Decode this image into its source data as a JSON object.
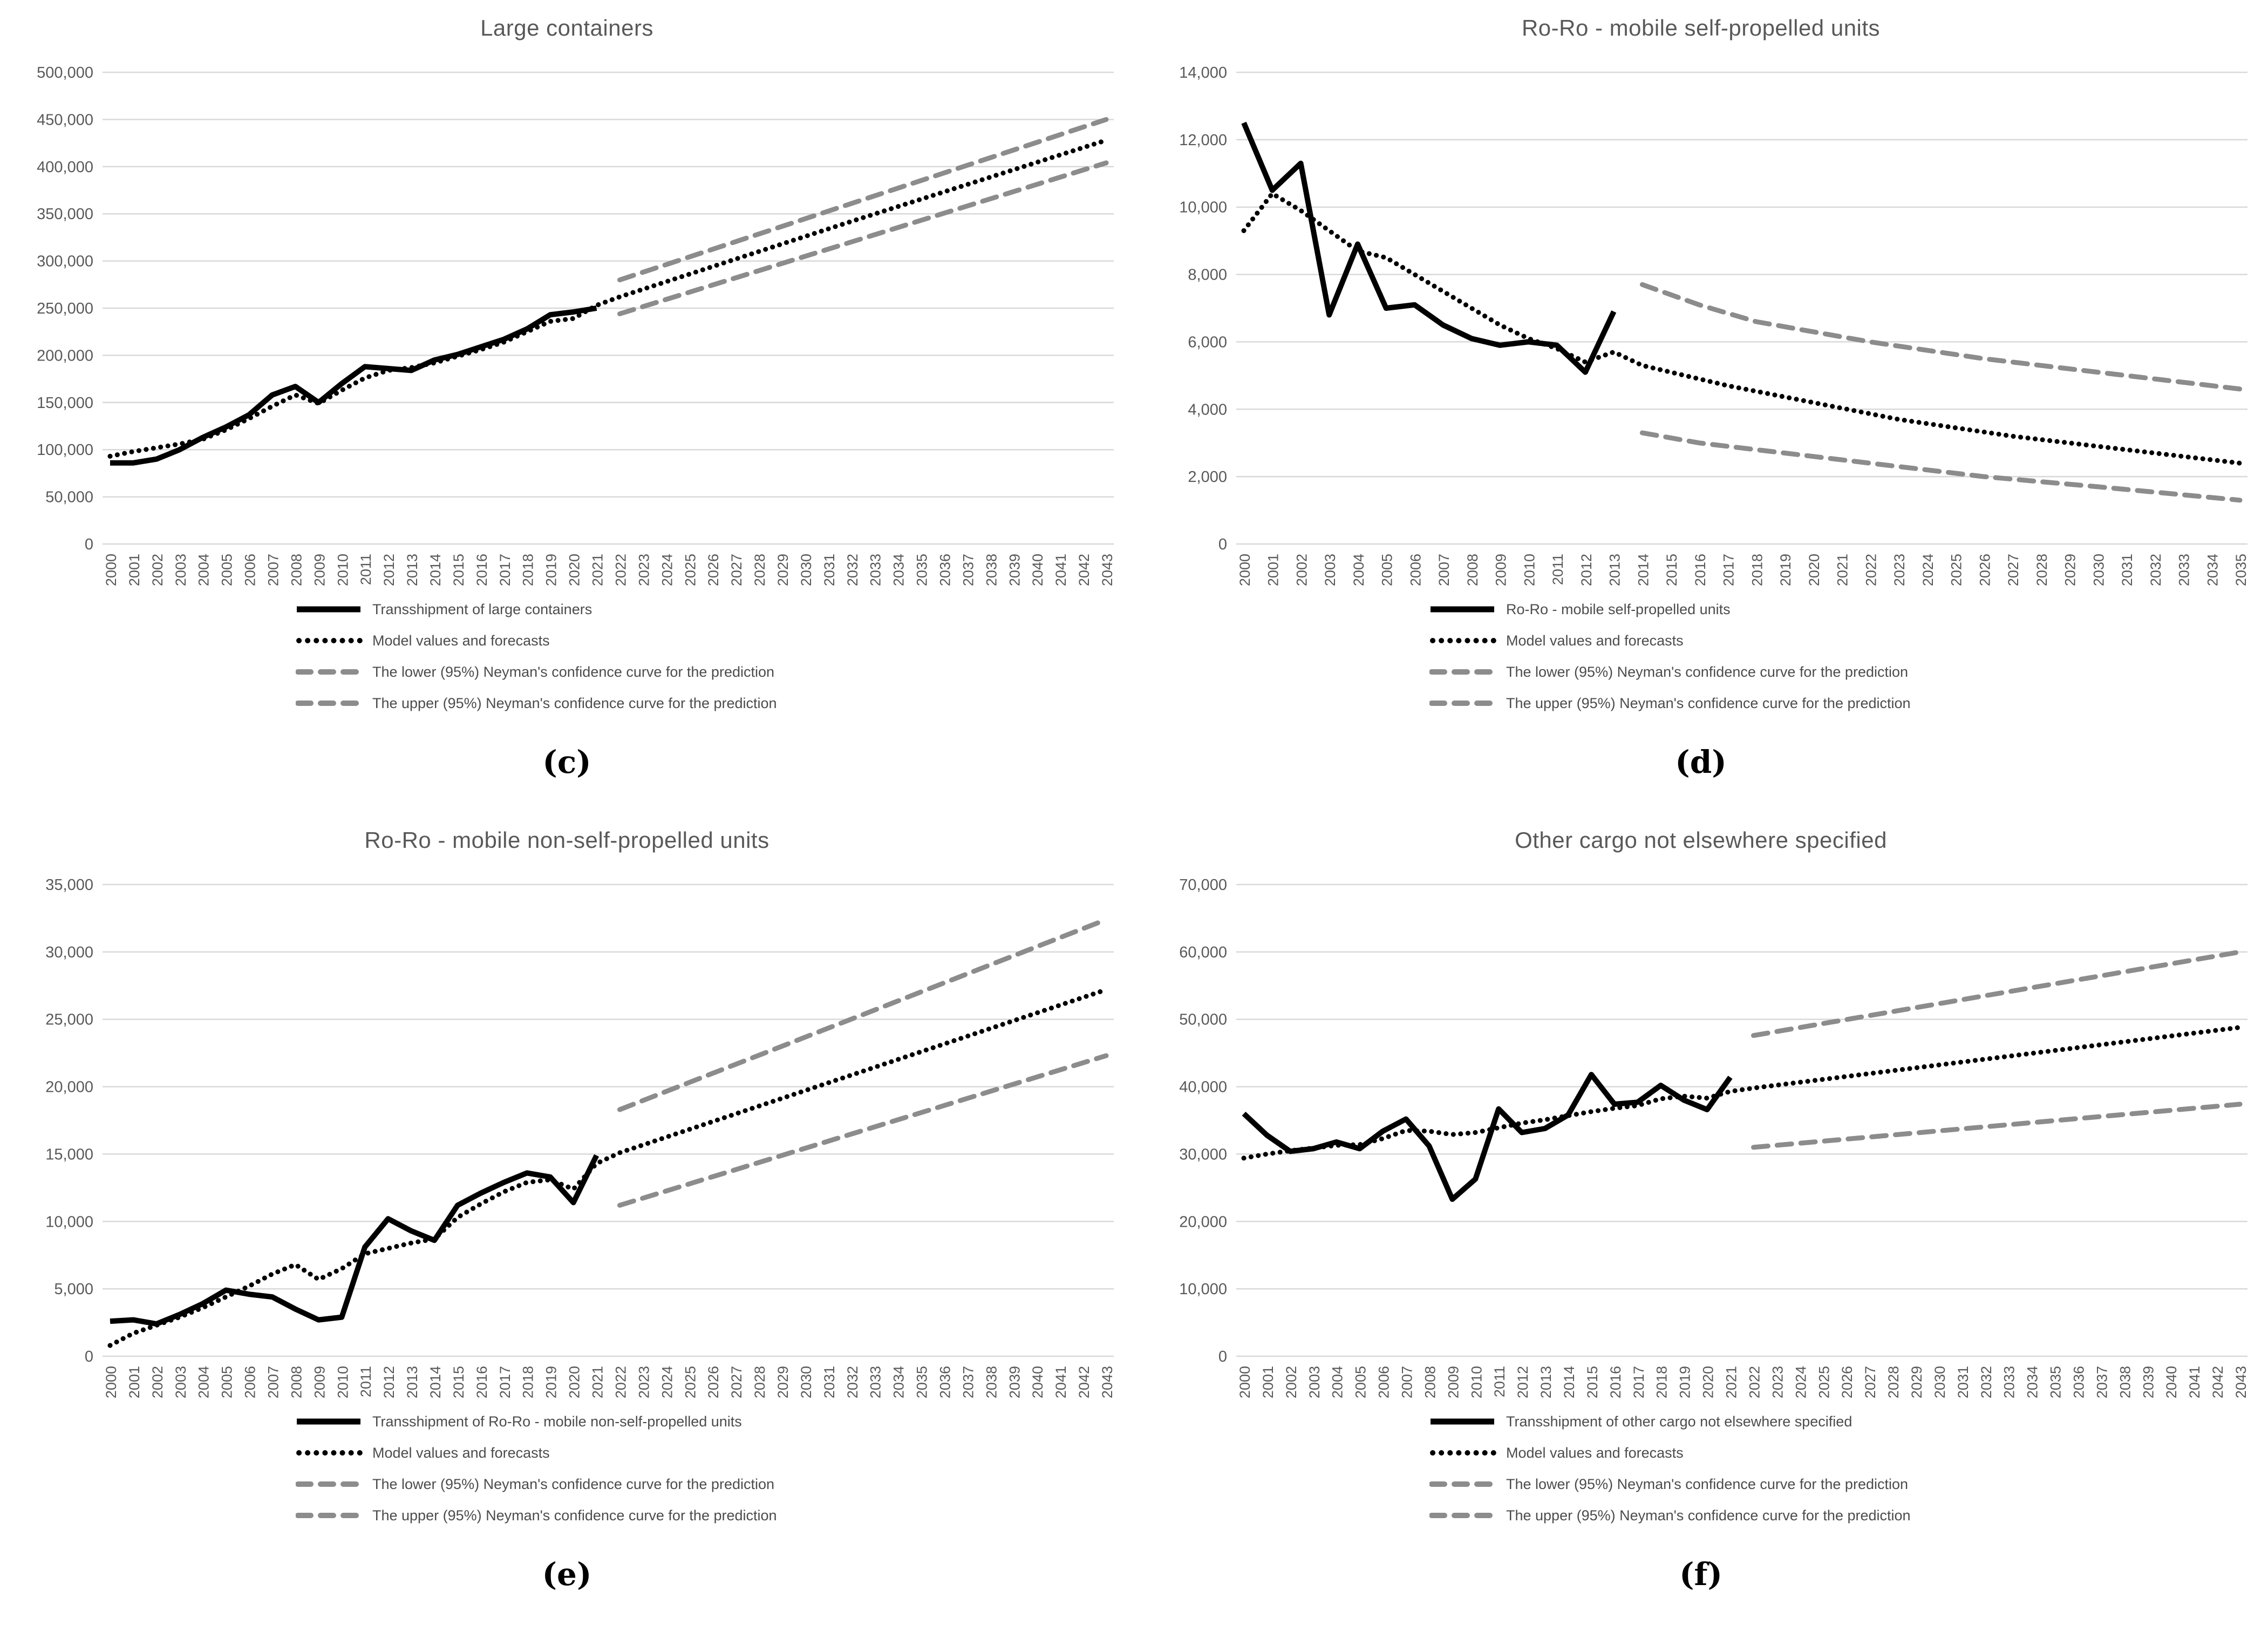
{
  "figure": {
    "background": "#ffffff",
    "colors": {
      "actual_line": "#000000",
      "model_line": "#000000",
      "confidence_line": "#8c8c8c",
      "gridline": "#d9d9d9",
      "axis_text": "#595959",
      "legend_text": "#4c4c4c",
      "title_text": "#595959"
    }
  },
  "chart_data": [
    {
      "type": "line",
      "panel_label": "(c)",
      "title": "Large containers",
      "xlabel": "",
      "ylabel": "",
      "x_start": 2000,
      "x_end": 2043,
      "ylim": [
        0,
        500000
      ],
      "ystep": 50000,
      "grid": true,
      "legend_position": "bottom",
      "series": [
        {
          "name": "Transshipment of large containers",
          "role": "actual",
          "points": [
            [
              2000,
              86000
            ],
            [
              2001,
              86000
            ],
            [
              2002,
              90000
            ],
            [
              2003,
              100000
            ],
            [
              2004,
              113000
            ],
            [
              2005,
              124000
            ],
            [
              2006,
              137000
            ],
            [
              2007,
              158000
            ],
            [
              2008,
              167000
            ],
            [
              2009,
              150000
            ],
            [
              2010,
              170000
            ],
            [
              2011,
              188000
            ],
            [
              2012,
              186000
            ],
            [
              2013,
              184000
            ],
            [
              2014,
              195000
            ],
            [
              2015,
              201000
            ],
            [
              2016,
              209000
            ],
            [
              2017,
              217000
            ],
            [
              2018,
              228000
            ],
            [
              2019,
              243000
            ],
            [
              2020,
              246000
            ],
            [
              2021,
              250000
            ]
          ]
        },
        {
          "name": "Model values and forecasts",
          "role": "model",
          "points": [
            [
              2000,
              93000
            ],
            [
              2001,
              98000
            ],
            [
              2002,
              102000
            ],
            [
              2003,
              106000
            ],
            [
              2004,
              111000
            ],
            [
              2005,
              121000
            ],
            [
              2006,
              133000
            ],
            [
              2007,
              146000
            ],
            [
              2008,
              158000
            ],
            [
              2009,
              149000
            ],
            [
              2010,
              163000
            ],
            [
              2011,
              176000
            ],
            [
              2012,
              184000
            ],
            [
              2013,
              187000
            ],
            [
              2014,
              192000
            ],
            [
              2015,
              199000
            ],
            [
              2016,
              206000
            ],
            [
              2017,
              214000
            ],
            [
              2018,
              225000
            ],
            [
              2019,
              236000
            ],
            [
              2020,
              239000
            ],
            [
              2021,
              253000
            ],
            [
              2022,
              262000
            ],
            [
              2032,
              342000
            ],
            [
              2043,
              428000
            ]
          ]
        },
        {
          "name": "The lower (95%) Neyman's confidence curve for the prediction",
          "role": "lower",
          "points": [
            [
              2022,
              244000
            ],
            [
              2043,
              404000
            ]
          ]
        },
        {
          "name": "The upper (95%) Neyman's confidence curve for the prediction",
          "role": "upper",
          "points": [
            [
              2022,
              280000
            ],
            [
              2043,
              450000
            ]
          ]
        }
      ]
    },
    {
      "type": "line",
      "panel_label": "(d)",
      "title": "Ro-Ro - mobile self-propelled units",
      "xlabel": "",
      "ylabel": "",
      "x_start": 2000,
      "x_end": 2035,
      "ylim": [
        0,
        14000
      ],
      "ystep": 2000,
      "grid": true,
      "legend_position": "bottom",
      "series": [
        {
          "name": "Ro-Ro - mobile self-propelled units",
          "role": "actual",
          "points": [
            [
              2000,
              12500
            ],
            [
              2001,
              10500
            ],
            [
              2002,
              11300
            ],
            [
              2003,
              6800
            ],
            [
              2004,
              8900
            ],
            [
              2005,
              7000
            ],
            [
              2006,
              7100
            ],
            [
              2007,
              6500
            ],
            [
              2008,
              6100
            ],
            [
              2009,
              5900
            ],
            [
              2010,
              6000
            ],
            [
              2011,
              5900
            ],
            [
              2012,
              5100
            ],
            [
              2013,
              6900
            ]
          ]
        },
        {
          "name": "Model values and forecasts",
          "role": "model",
          "points": [
            [
              2000,
              9300
            ],
            [
              2001,
              10400
            ],
            [
              2002,
              9900
            ],
            [
              2003,
              9300
            ],
            [
              2004,
              8700
            ],
            [
              2005,
              8500
            ],
            [
              2006,
              8000
            ],
            [
              2007,
              7500
            ],
            [
              2008,
              7000
            ],
            [
              2009,
              6500
            ],
            [
              2010,
              6100
            ],
            [
              2011,
              5800
            ],
            [
              2012,
              5400
            ],
            [
              2013,
              5700
            ],
            [
              2014,
              5300
            ],
            [
              2017,
              4700
            ],
            [
              2020,
              4200
            ],
            [
              2023,
              3700
            ],
            [
              2027,
              3200
            ],
            [
              2031,
              2800
            ],
            [
              2035,
              2400
            ]
          ]
        },
        {
          "name": "The lower (95%) Neyman's confidence curve for the prediction",
          "role": "lower",
          "points": [
            [
              2014,
              3300
            ],
            [
              2016,
              3000
            ],
            [
              2018,
              2800
            ],
            [
              2020,
              2600
            ],
            [
              2022,
              2400
            ],
            [
              2026,
              2000
            ],
            [
              2030,
              1700
            ],
            [
              2035,
              1300
            ]
          ]
        },
        {
          "name": "The upper (95%) Neyman's confidence curve for the prediction",
          "role": "upper",
          "points": [
            [
              2014,
              7700
            ],
            [
              2016,
              7100
            ],
            [
              2018,
              6600
            ],
            [
              2020,
              6300
            ],
            [
              2022,
              6000
            ],
            [
              2026,
              5500
            ],
            [
              2030,
              5100
            ],
            [
              2035,
              4600
            ]
          ]
        }
      ]
    },
    {
      "type": "line",
      "panel_label": "(e)",
      "title": "Ro-Ro - mobile non-self-propelled units",
      "xlabel": "",
      "ylabel": "",
      "x_start": 2000,
      "x_end": 2043,
      "ylim": [
        0,
        35000
      ],
      "ystep": 5000,
      "grid": true,
      "legend_position": "bottom",
      "series": [
        {
          "name": "Transshipment of Ro-Ro - mobile non-self-propelled units",
          "role": "actual",
          "points": [
            [
              2000,
              2600
            ],
            [
              2001,
              2700
            ],
            [
              2002,
              2400
            ],
            [
              2003,
              3100
            ],
            [
              2004,
              3900
            ],
            [
              2005,
              4900
            ],
            [
              2006,
              4600
            ],
            [
              2007,
              4400
            ],
            [
              2008,
              3500
            ],
            [
              2009,
              2700
            ],
            [
              2010,
              2900
            ],
            [
              2011,
              8100
            ],
            [
              2012,
              10200
            ],
            [
              2013,
              9300
            ],
            [
              2014,
              8600
            ],
            [
              2015,
              11200
            ],
            [
              2016,
              12100
            ],
            [
              2017,
              12900
            ],
            [
              2018,
              13600
            ],
            [
              2019,
              13300
            ],
            [
              2020,
              11400
            ],
            [
              2021,
              14900
            ]
          ]
        },
        {
          "name": "Model values and forecasts",
          "role": "model",
          "points": [
            [
              2000,
              800
            ],
            [
              2001,
              1700
            ],
            [
              2002,
              2300
            ],
            [
              2003,
              2900
            ],
            [
              2004,
              3600
            ],
            [
              2005,
              4400
            ],
            [
              2006,
              5200
            ],
            [
              2007,
              6100
            ],
            [
              2008,
              6800
            ],
            [
              2009,
              5700
            ],
            [
              2010,
              6500
            ],
            [
              2011,
              7600
            ],
            [
              2012,
              8000
            ],
            [
              2013,
              8400
            ],
            [
              2014,
              8700
            ],
            [
              2015,
              10300
            ],
            [
              2016,
              11300
            ],
            [
              2017,
              12200
            ],
            [
              2018,
              12900
            ],
            [
              2019,
              13100
            ],
            [
              2020,
              12400
            ],
            [
              2021,
              14300
            ],
            [
              2022,
              15100
            ],
            [
              2043,
              27200
            ]
          ]
        },
        {
          "name": "The lower (95%) Neyman's confidence curve for the prediction",
          "role": "lower",
          "points": [
            [
              2022,
              11200
            ],
            [
              2043,
              22300
            ]
          ]
        },
        {
          "name": "The upper (95%) Neyman's confidence curve for the prediction",
          "role": "upper",
          "points": [
            [
              2022,
              18300
            ],
            [
              2043,
              32400
            ]
          ]
        }
      ]
    },
    {
      "type": "line",
      "panel_label": "(f)",
      "title": "Other cargo not elsewhere specified",
      "xlabel": "",
      "ylabel": "",
      "x_start": 2000,
      "x_end": 2043,
      "ylim": [
        0,
        70000
      ],
      "ystep": 10000,
      "grid": true,
      "legend_position": "bottom",
      "series": [
        {
          "name": "Transshipment of other cargo not elsewhere specified",
          "role": "actual",
          "points": [
            [
              2000,
              36000
            ],
            [
              2001,
              32800
            ],
            [
              2002,
              30400
            ],
            [
              2003,
              30800
            ],
            [
              2004,
              31800
            ],
            [
              2005,
              30800
            ],
            [
              2006,
              33400
            ],
            [
              2007,
              35200
            ],
            [
              2008,
              31200
            ],
            [
              2009,
              23300
            ],
            [
              2010,
              26300
            ],
            [
              2011,
              36700
            ],
            [
              2012,
              33200
            ],
            [
              2013,
              33800
            ],
            [
              2014,
              35800
            ],
            [
              2015,
              41800
            ],
            [
              2016,
              37400
            ],
            [
              2017,
              37700
            ],
            [
              2018,
              40200
            ],
            [
              2019,
              38000
            ],
            [
              2020,
              36600
            ],
            [
              2021,
              41400
            ]
          ]
        },
        {
          "name": "Model values and forecasts",
          "role": "model",
          "points": [
            [
              2000,
              29400
            ],
            [
              2001,
              30000
            ],
            [
              2002,
              30500
            ],
            [
              2003,
              30900
            ],
            [
              2004,
              31300
            ],
            [
              2005,
              31400
            ],
            [
              2006,
              32300
            ],
            [
              2007,
              33500
            ],
            [
              2008,
              33400
            ],
            [
              2009,
              32900
            ],
            [
              2010,
              33200
            ],
            [
              2011,
              33900
            ],
            [
              2012,
              34600
            ],
            [
              2013,
              35100
            ],
            [
              2014,
              35700
            ],
            [
              2015,
              36300
            ],
            [
              2016,
              36800
            ],
            [
              2017,
              37200
            ],
            [
              2018,
              38200
            ],
            [
              2019,
              38600
            ],
            [
              2020,
              38300
            ],
            [
              2021,
              39300
            ],
            [
              2022,
              39800
            ],
            [
              2043,
              48800
            ]
          ]
        },
        {
          "name": "The lower (95%) Neyman's confidence curve for the prediction",
          "role": "lower",
          "points": [
            [
              2022,
              31000
            ],
            [
              2043,
              37400
            ]
          ]
        },
        {
          "name": "The upper (95%) Neyman's confidence curve for the prediction",
          "role": "upper",
          "points": [
            [
              2022,
              47600
            ],
            [
              2043,
              60000
            ]
          ]
        }
      ]
    }
  ]
}
